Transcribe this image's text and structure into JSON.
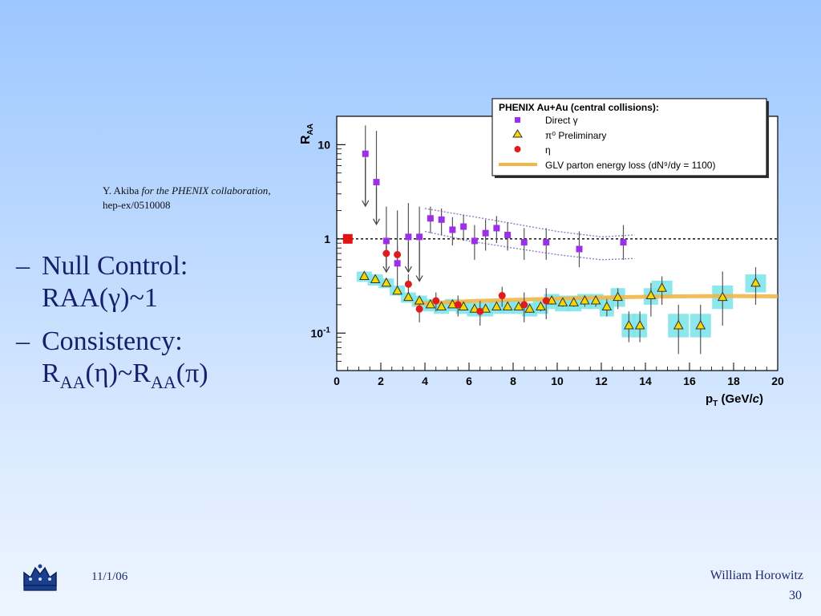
{
  "citation": {
    "author": "Y. Akiba ",
    "collab": "for the PHENIX collaboration",
    "comma": ",",
    "ref": "hep-ex/0510008"
  },
  "bullets": {
    "b1_dash": "–",
    "b1_line1": "Null Control:",
    "b1_line2": "RAA(γ)~1",
    "b2_dash": "–",
    "b2_line1": "Consistency:",
    "b2_r1": "R",
    "b2_sub1": "AA",
    "b2_mid": "(η)~R",
    "b2_sub2": "AA",
    "b2_end": "(π)"
  },
  "footer": {
    "date": "11/1/06",
    "author": "William Horowitz",
    "page": "30"
  },
  "colors": {
    "direct_gamma": "#9b30e8",
    "pi0": "#f5d800",
    "eta": "#e01b1b",
    "glv": "#f2b64a",
    "sys_band": "#7fe6ea",
    "ref_point": "#e11414"
  },
  "chart_data": {
    "type": "scatter",
    "ylabel": "R",
    "ylabel_sub": "AA",
    "xlabel_main": "p",
    "xlabel_sub": "T",
    "xlabel_unit": " (GeV/",
    "xlabel_c": "c",
    "xlabel_end": ")",
    "xlim": [
      0,
      20
    ],
    "ylim": [
      0.04,
      20
    ],
    "yscale": "log",
    "xticks": [
      0,
      2,
      4,
      6,
      8,
      10,
      12,
      14,
      16,
      18,
      20
    ],
    "yticks": [
      {
        "v": 10,
        "base": "10",
        "exp": ""
      },
      {
        "v": 1,
        "base": "1",
        "exp": ""
      },
      {
        "v": 0.1,
        "base": "10",
        "exp": "-1"
      }
    ],
    "legend": {
      "title": "PHENIX Au+Au (central collisions):",
      "position": "top-right",
      "entries": [
        "Direct γ",
        "π⁰ Preliminary",
        "η",
        "GLV parton energy loss (dN⁹/dy = 1100)"
      ]
    },
    "reference_point": {
      "x": 0.5,
      "y": 1.0
    },
    "series": [
      {
        "name": "Direct γ",
        "marker": "square",
        "x": [
          1.3,
          1.8,
          2.25,
          2.75,
          3.25,
          3.75,
          4.25,
          4.75,
          5.25,
          5.75,
          6.25,
          6.75,
          7.25,
          7.75,
          8.5,
          9.5,
          11.0,
          13.0
        ],
        "y": [
          8.0,
          4.0,
          0.95,
          0.55,
          1.05,
          1.05,
          1.65,
          1.6,
          1.25,
          1.35,
          0.95,
          1.15,
          1.3,
          1.1,
          0.92,
          0.92,
          0.78,
          0.92
        ],
        "yerr_hi": [
          16.0,
          14.0,
          2.2,
          2.0,
          2.4,
          2.2,
          2.2,
          2.1,
          1.7,
          1.8,
          1.4,
          1.6,
          1.75,
          1.5,
          1.3,
          1.3,
          1.2,
          1.4
        ],
        "yerr_lo": [
          2.5,
          1.6,
          0.5,
          0.3,
          0.5,
          0.4,
          1.15,
          1.1,
          0.85,
          0.95,
          0.6,
          0.75,
          0.9,
          0.75,
          0.6,
          0.6,
          0.5,
          0.6
        ],
        "upper_limits": [
          1.3,
          1.8,
          2.25,
          3.25,
          3.75
        ]
      },
      {
        "name": "π⁰ Preliminary",
        "marker": "triangle",
        "x": [
          1.25,
          1.75,
          2.25,
          2.75,
          3.25,
          3.75,
          4.25,
          4.75,
          5.25,
          5.75,
          6.25,
          6.75,
          7.25,
          7.75,
          8.25,
          8.75,
          9.25,
          9.75,
          10.25,
          10.75,
          11.25,
          11.75,
          12.25,
          12.75,
          13.25,
          13.75,
          14.25,
          14.75,
          15.5,
          16.5,
          17.5,
          19.0
        ],
        "y": [
          0.4,
          0.37,
          0.34,
          0.28,
          0.24,
          0.22,
          0.2,
          0.19,
          0.2,
          0.19,
          0.18,
          0.18,
          0.19,
          0.19,
          0.19,
          0.18,
          0.19,
          0.22,
          0.21,
          0.21,
          0.22,
          0.22,
          0.19,
          0.24,
          0.12,
          0.12,
          0.25,
          0.3,
          0.12,
          0.12,
          0.24,
          0.34
        ],
        "yerr_hi": [
          0.41,
          0.38,
          0.35,
          0.29,
          0.25,
          0.23,
          0.21,
          0.2,
          0.21,
          0.2,
          0.19,
          0.19,
          0.2,
          0.2,
          0.2,
          0.19,
          0.21,
          0.24,
          0.23,
          0.23,
          0.25,
          0.25,
          0.23,
          0.3,
          0.17,
          0.17,
          0.34,
          0.4,
          0.2,
          0.2,
          0.45,
          0.5
        ],
        "yerr_lo": [
          0.39,
          0.36,
          0.33,
          0.27,
          0.23,
          0.21,
          0.19,
          0.18,
          0.19,
          0.18,
          0.17,
          0.17,
          0.18,
          0.18,
          0.18,
          0.17,
          0.17,
          0.2,
          0.19,
          0.19,
          0.19,
          0.19,
          0.15,
          0.18,
          0.08,
          0.08,
          0.15,
          0.2,
          0.06,
          0.06,
          0.12,
          0.2
        ],
        "sys_hi": [
          0.45,
          0.42,
          0.38,
          0.32,
          0.27,
          0.25,
          0.23,
          0.22,
          0.23,
          0.22,
          0.21,
          0.21,
          0.22,
          0.22,
          0.22,
          0.21,
          0.22,
          0.26,
          0.25,
          0.25,
          0.26,
          0.26,
          0.24,
          0.3,
          0.16,
          0.16,
          0.3,
          0.36,
          0.16,
          0.16,
          0.32,
          0.42
        ],
        "sys_lo": [
          0.35,
          0.32,
          0.3,
          0.25,
          0.21,
          0.19,
          0.17,
          0.16,
          0.17,
          0.16,
          0.15,
          0.15,
          0.16,
          0.16,
          0.16,
          0.15,
          0.16,
          0.18,
          0.17,
          0.17,
          0.18,
          0.18,
          0.15,
          0.19,
          0.09,
          0.09,
          0.2,
          0.24,
          0.09,
          0.09,
          0.18,
          0.27
        ]
      },
      {
        "name": "η",
        "marker": "circle",
        "x": [
          2.25,
          2.75,
          3.25,
          3.75,
          4.5,
          5.5,
          6.5,
          7.5,
          8.5,
          9.5
        ],
        "y": [
          0.7,
          0.68,
          0.33,
          0.18,
          0.22,
          0.2,
          0.17,
          0.25,
          0.2,
          0.22
        ],
        "yerr_hi": [
          0.9,
          0.85,
          0.42,
          0.23,
          0.27,
          0.25,
          0.22,
          0.31,
          0.27,
          0.3
        ],
        "yerr_lo": [
          0.5,
          0.52,
          0.25,
          0.13,
          0.17,
          0.15,
          0.12,
          0.19,
          0.13,
          0.14
        ]
      },
      {
        "name": "GLV parton energy loss (dN⁹/dy = 1100)",
        "marker": "band",
        "x": [
          3.5,
          5,
          6,
          8,
          10,
          12,
          14,
          16,
          18,
          20
        ],
        "y": [
          0.205,
          0.212,
          0.218,
          0.225,
          0.232,
          0.238,
          0.243,
          0.246,
          0.247,
          0.245
        ]
      }
    ],
    "envelope_upper": {
      "x": [
        4.0,
        6,
        8,
        10,
        12,
        13.5
      ],
      "y": [
        2.1,
        1.75,
        1.45,
        1.2,
        1.05,
        1.1
      ]
    },
    "envelope_lower": {
      "x": [
        4.0,
        6,
        8,
        10,
        12,
        13.5
      ],
      "y": [
        1.2,
        0.95,
        0.8,
        0.68,
        0.6,
        0.62
      ]
    }
  }
}
